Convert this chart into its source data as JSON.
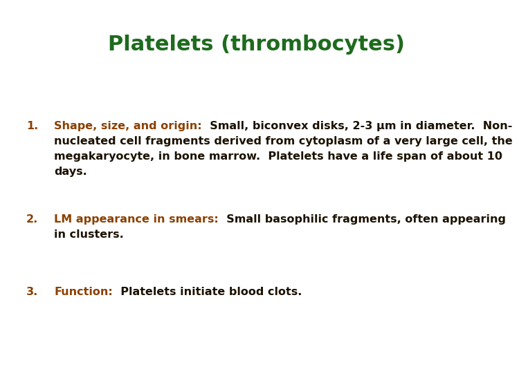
{
  "title": "Platelets (thrombocytes)",
  "title_color": "#1e6b1e",
  "title_fontsize": 22,
  "background_color": "#ffffff",
  "accent_color": "#8B4000",
  "text_color": "#1a1100",
  "fontsize": 11.5,
  "font_family": "DejaVu Sans",
  "items": [
    {
      "number": "1.",
      "label": "Shape, size, and origin:",
      "lines": [
        {
          "parts": [
            {
              "text": "Shape, size, and origin:",
              "color": "#8B4000",
              "bold": true
            },
            {
              "text": "  Small, biconvex disks, 2-3 μm in diameter.  Non-",
              "color": "#1a1100",
              "bold": true
            }
          ]
        },
        {
          "parts": [
            {
              "text": "nucleated cell fragments derived from cytoplasm of a very large cell, the",
              "color": "#1a1100",
              "bold": true
            }
          ]
        },
        {
          "parts": [
            {
              "text": "megakaryocyte, in bone marrow.  Platelets have a life span of about 10",
              "color": "#1a1100",
              "bold": true
            }
          ]
        },
        {
          "parts": [
            {
              "text": "days.",
              "color": "#1a1100",
              "bold": true
            }
          ]
        }
      ]
    },
    {
      "number": "2.",
      "label": "LM appearance in smears:",
      "lines": [
        {
          "parts": [
            {
              "text": "LM appearance in smears:",
              "color": "#8B4000",
              "bold": true
            },
            {
              "text": "  Small basophilic fragments, often appearing",
              "color": "#1a1100",
              "bold": true
            }
          ]
        },
        {
          "parts": [
            {
              "text": "in clusters.",
              "color": "#1a1100",
              "bold": true
            }
          ]
        }
      ]
    },
    {
      "number": "3.",
      "label": "Function:",
      "lines": [
        {
          "parts": [
            {
              "text": "Function:",
              "color": "#8B4000",
              "bold": true
            },
            {
              "text": "  Platelets initiate blood clots.",
              "color": "#1a1100",
              "bold": true
            }
          ]
        }
      ]
    }
  ]
}
